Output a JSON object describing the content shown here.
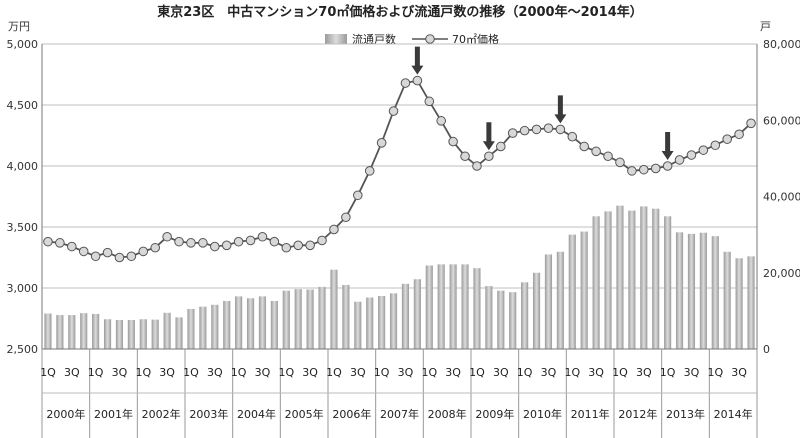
{
  "chart_data": {
    "type": "bar+line",
    "title": "東京23区　中古マンション70㎡価格および流通戸数の推移（2000年～2014年）",
    "left_unit": "万円",
    "right_unit": "戸",
    "y_left": {
      "min": 2500,
      "max": 5000,
      "ticks": [
        "2,500",
        "3,000",
        "3,500",
        "4,000",
        "4,500",
        "5,000"
      ]
    },
    "y_right": {
      "min": 0,
      "max": 80000,
      "ticks": [
        "0",
        "20,000",
        "40,000",
        "60,000",
        "80,000"
      ]
    },
    "quarter_tick_labels": [
      "1Q",
      "3Q"
    ],
    "years": [
      "2000年",
      "2001年",
      "2002年",
      "2003年",
      "2004年",
      "2005年",
      "2006年",
      "2007年",
      "2008年",
      "2009年",
      "2010年",
      "2011年",
      "2012年",
      "2013年",
      "2014年"
    ],
    "legend": {
      "bar_label": "流通戸数",
      "line_label": "70㎡価格",
      "placement": "top-center"
    },
    "series": [
      {
        "name": "流通戸数",
        "kind": "bar",
        "axis": "right",
        "values": [
          9300,
          8900,
          8900,
          9400,
          9200,
          7800,
          7600,
          7600,
          7800,
          7700,
          9500,
          8300,
          10500,
          11100,
          11600,
          12600,
          13800,
          13300,
          13800,
          12600,
          15300,
          15700,
          15600,
          16300,
          20800,
          16800,
          12400,
          13500,
          13900,
          14600,
          17100,
          18300,
          21900,
          22200,
          22200,
          22200,
          21200,
          16500,
          15300,
          14900,
          17500,
          20000,
          24800,
          25500,
          30000,
          30800,
          34800,
          36100,
          37600,
          36300,
          37400,
          36800,
          34800,
          30600,
          30200,
          30500,
          29600,
          25500,
          23800,
          24300
        ]
      },
      {
        "name": "70㎡価格",
        "kind": "line",
        "axis": "left",
        "values": [
          3380,
          3370,
          3340,
          3300,
          3260,
          3290,
          3250,
          3260,
          3300,
          3330,
          3420,
          3380,
          3370,
          3370,
          3340,
          3350,
          3380,
          3390,
          3420,
          3380,
          3330,
          3350,
          3350,
          3390,
          3480,
          3580,
          3760,
          3960,
          4190,
          4450,
          4680,
          4700,
          4530,
          4370,
          4200,
          4080,
          4000,
          4080,
          4160,
          4270,
          4290,
          4300,
          4310,
          4300,
          4240,
          4160,
          4120,
          4080,
          4030,
          3960,
          3970,
          3980,
          4000,
          4050,
          4090,
          4130,
          4170,
          4220,
          4260,
          4350
        ]
      }
    ],
    "arrows_at_quarter_index": [
      31,
      37,
      43,
      52
    ],
    "grid": true,
    "colors": {
      "bar": "#b0b0b0",
      "line": "#555555",
      "marker_fill": "#d8d8d8",
      "grid": "#bfbfbf",
      "arrow": "#3a3a3a"
    }
  }
}
